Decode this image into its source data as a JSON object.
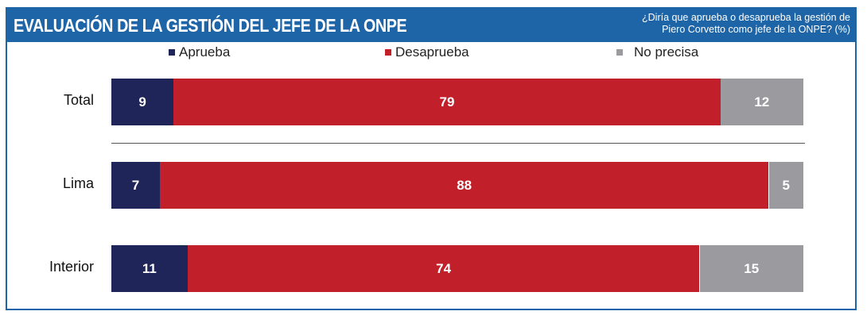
{
  "header": {
    "title": "EVALUACIÓN DE LA GESTIÓN DEL JEFE DE LA ONPE",
    "question_line1": "¿Diría que aprueba o desaprueba la gestión de",
    "question_line2": "Piero Corvetto como jefe de la ONPE? (%)"
  },
  "chart_data": {
    "type": "bar",
    "orientation": "horizontal",
    "stacked": true,
    "title": "EVALUACIÓN DE LA GESTIÓN DEL JEFE DE LA ONPE",
    "categories": [
      "Total",
      "Lima",
      "Interior"
    ],
    "series": [
      {
        "name": "Aprueba",
        "color": "#1f2559",
        "values": [
          9,
          7,
          11
        ]
      },
      {
        "name": "Desaprueba",
        "color": "#c1202a",
        "values": [
          79,
          88,
          74
        ]
      },
      {
        "name": "No precisa",
        "color": "#9b9b9f",
        "values": [
          12,
          5,
          15
        ]
      }
    ],
    "xlim": [
      0,
      100
    ],
    "legend": "top",
    "unit": "%"
  }
}
